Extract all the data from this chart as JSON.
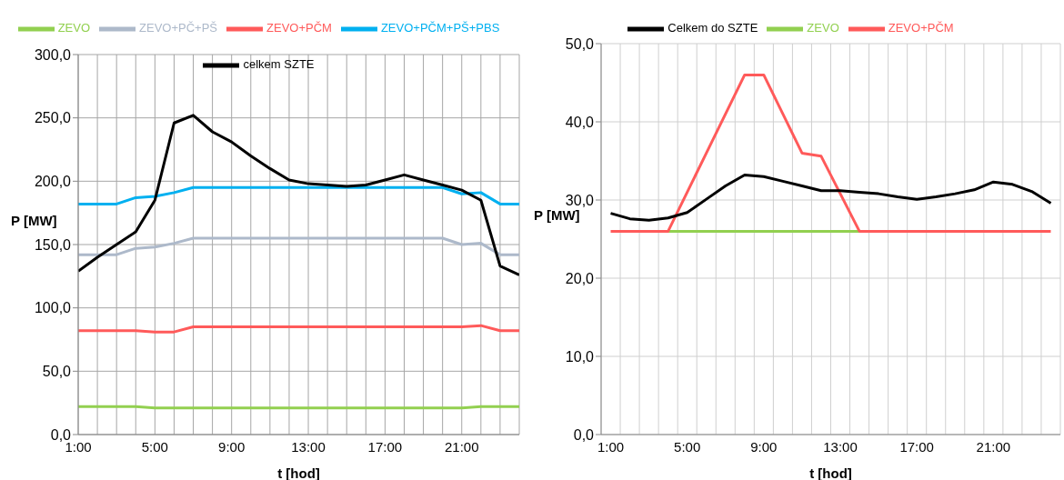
{
  "chart_data": [
    {
      "type": "line",
      "xlabel": "t [hod]",
      "ylabel": "P [MW]",
      "categories": [
        "1:00",
        null,
        null,
        null,
        "5:00",
        null,
        null,
        null,
        "9:00",
        null,
        null,
        null,
        "13:00",
        null,
        null,
        null,
        "17:00",
        null,
        null,
        null,
        "21:00",
        null,
        null,
        null
      ],
      "series": [
        {
          "name": "ZEVO",
          "color": "#92d050",
          "values": [
            22,
            22,
            22,
            22,
            21,
            21,
            21,
            21,
            21,
            21,
            21,
            21,
            21,
            21,
            21,
            21,
            21,
            21,
            21,
            21,
            21,
            22,
            22,
            22
          ]
        },
        {
          "name": "ZEVO+PČM",
          "color": "#ff5a5a",
          "values": [
            82,
            82,
            82,
            82,
            81,
            81,
            85,
            85,
            85,
            85,
            85,
            85,
            85,
            85,
            85,
            85,
            85,
            85,
            85,
            85,
            85,
            86,
            82,
            82
          ]
        },
        {
          "name": "ZEVO+PČ+PŠ",
          "color": "#adb9ca",
          "values": [
            142,
            142,
            142,
            147,
            148,
            151,
            155,
            155,
            155,
            155,
            155,
            155,
            155,
            155,
            155,
            155,
            155,
            155,
            155,
            155,
            150,
            151,
            142,
            142
          ]
        },
        {
          "name": "ZEVO+PČM+PŠ+PBS",
          "color": "#00b0f0",
          "values": [
            182,
            182,
            182,
            187,
            188,
            191,
            195,
            195,
            195,
            195,
            195,
            195,
            195,
            195,
            195,
            195,
            195,
            195,
            195,
            195,
            190,
            191,
            182,
            182
          ]
        },
        {
          "name": "celkem SZTE",
          "color": "#000000",
          "values": [
            129,
            140,
            150,
            160,
            185,
            246,
            252,
            239,
            231,
            220,
            210,
            201,
            198,
            197,
            196,
            197,
            201,
            205,
            201,
            197,
            193,
            185,
            133,
            126
          ]
        }
      ],
      "ylim": [
        0,
        300
      ],
      "yticks": [
        {
          "value": 0,
          "label": "0,0"
        },
        {
          "value": 50,
          "label": "50,0"
        },
        {
          "value": 100,
          "label": "100,0"
        },
        {
          "value": 150,
          "label": "150,0"
        },
        {
          "value": 200,
          "label": "200,0"
        },
        {
          "value": 250,
          "label": "250,0"
        },
        {
          "value": 300,
          "label": "300,0"
        }
      ],
      "grid": true,
      "legend": "top"
    },
    {
      "type": "line",
      "xlabel": "t [hod]",
      "ylabel": "P [MW]",
      "categories": [
        "1:00",
        null,
        null,
        null,
        "5:00",
        null,
        null,
        null,
        "9:00",
        null,
        null,
        null,
        "13:00",
        null,
        null,
        null,
        "17:00",
        null,
        null,
        null,
        "21:00",
        null,
        null,
        null
      ],
      "series": [
        {
          "name": "ZEVO",
          "color": "#92d050",
          "values": [
            null,
            null,
            null,
            26,
            26,
            26,
            26,
            26,
            26,
            26,
            26,
            26,
            26,
            26,
            null,
            null,
            null,
            null,
            null,
            null,
            null,
            null,
            null,
            null
          ]
        },
        {
          "name": "ZEVO+PČM",
          "color": "#ff5a5a",
          "values": [
            26,
            26,
            26,
            26,
            31,
            36,
            41,
            46,
            46,
            41,
            36,
            35.6,
            30.8,
            26,
            26,
            26,
            26,
            26,
            26,
            26,
            26,
            26,
            26,
            26
          ]
        },
        {
          "name": "Celkem do SZTE",
          "color": "#000000",
          "values": [
            28.3,
            27.6,
            27.4,
            27.7,
            28.4,
            30.1,
            31.8,
            33.2,
            33.0,
            32.4,
            31.8,
            31.2,
            31.2,
            31.0,
            30.8,
            30.4,
            30.1,
            30.4,
            30.8,
            31.3,
            32.3,
            32.0,
            31.1,
            29.6
          ]
        }
      ],
      "ylim": [
        0,
        50
      ],
      "yticks": [
        {
          "value": 0,
          "label": "0,0"
        },
        {
          "value": 10,
          "label": "10,0"
        },
        {
          "value": 20,
          "label": "20,0"
        },
        {
          "value": 30,
          "label": "30,0"
        },
        {
          "value": 40,
          "label": "40,0"
        },
        {
          "value": 50,
          "label": "50,0"
        }
      ],
      "grid": true,
      "legend": "top"
    }
  ]
}
